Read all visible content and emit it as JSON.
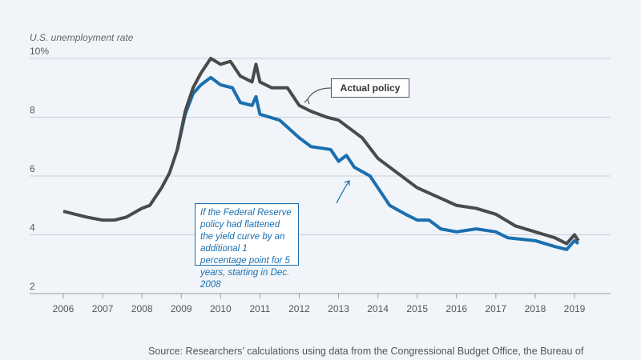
{
  "chart_data": {
    "type": "line",
    "title": "",
    "ylabel": "U.S. unemployment rate",
    "ylim": [
      2,
      10
    ],
    "xlim": [
      2006,
      2019
    ],
    "yticks": [
      "10%",
      "8",
      "6",
      "4",
      "2"
    ],
    "xticks": [
      "2006",
      "2007",
      "2008",
      "2009",
      "2010",
      "2011",
      "2012",
      "2013",
      "2014",
      "2015",
      "2016",
      "2017",
      "2018",
      "2019"
    ],
    "grid": true,
    "series": [
      {
        "name": "Actual policy",
        "color": "#4a4a4a",
        "points": [
          [
            2006.0,
            4.8
          ],
          [
            2006.3,
            4.7
          ],
          [
            2006.6,
            4.6
          ],
          [
            2007.0,
            4.5
          ],
          [
            2007.3,
            4.5
          ],
          [
            2007.6,
            4.6
          ],
          [
            2008.0,
            4.9
          ],
          [
            2008.2,
            5.0
          ],
          [
            2008.5,
            5.6
          ],
          [
            2008.7,
            6.1
          ],
          [
            2008.9,
            6.9
          ],
          [
            2009.1,
            8.2
          ],
          [
            2009.3,
            9.0
          ],
          [
            2009.5,
            9.5
          ],
          [
            2009.75,
            10.0
          ],
          [
            2010.0,
            9.8
          ],
          [
            2010.25,
            9.9
          ],
          [
            2010.5,
            9.4
          ],
          [
            2010.8,
            9.2
          ],
          [
            2010.9,
            9.8
          ],
          [
            2011.0,
            9.2
          ],
          [
            2011.3,
            9.0
          ],
          [
            2011.7,
            9.0
          ],
          [
            2012.0,
            8.4
          ],
          [
            2012.3,
            8.2
          ],
          [
            2012.7,
            8.0
          ],
          [
            2013.0,
            7.9
          ],
          [
            2013.3,
            7.6
          ],
          [
            2013.6,
            7.3
          ],
          [
            2014.0,
            6.6
          ],
          [
            2014.5,
            6.1
          ],
          [
            2015.0,
            5.6
          ],
          [
            2015.5,
            5.3
          ],
          [
            2016.0,
            5.0
          ],
          [
            2016.5,
            4.9
          ],
          [
            2017.0,
            4.7
          ],
          [
            2017.5,
            4.3
          ],
          [
            2018.0,
            4.1
          ],
          [
            2018.5,
            3.9
          ],
          [
            2018.8,
            3.7
          ],
          [
            2019.0,
            4.0
          ],
          [
            2019.1,
            3.8
          ]
        ]
      },
      {
        "name": "If the Federal Reserve policy had flattened the yield curve by an additional 1 percentage point for 5 years, starting in Dec. 2008",
        "color": "#1a6fb0",
        "points": [
          [
            2008.9,
            6.9
          ],
          [
            2009.1,
            8.1
          ],
          [
            2009.3,
            8.8
          ],
          [
            2009.5,
            9.1
          ],
          [
            2009.75,
            9.35
          ],
          [
            2010.0,
            9.1
          ],
          [
            2010.3,
            9.0
          ],
          [
            2010.5,
            8.5
          ],
          [
            2010.8,
            8.4
          ],
          [
            2010.9,
            8.7
          ],
          [
            2011.0,
            8.1
          ],
          [
            2011.5,
            7.9
          ],
          [
            2012.0,
            7.3
          ],
          [
            2012.3,
            7.0
          ],
          [
            2012.8,
            6.9
          ],
          [
            2013.0,
            6.5
          ],
          [
            2013.2,
            6.7
          ],
          [
            2013.4,
            6.3
          ],
          [
            2013.8,
            6.0
          ],
          [
            2014.0,
            5.6
          ],
          [
            2014.3,
            5.0
          ],
          [
            2014.7,
            4.7
          ],
          [
            2015.0,
            4.5
          ],
          [
            2015.3,
            4.5
          ],
          [
            2015.6,
            4.2
          ],
          [
            2016.0,
            4.1
          ],
          [
            2016.5,
            4.2
          ],
          [
            2017.0,
            4.1
          ],
          [
            2017.3,
            3.9
          ],
          [
            2018.0,
            3.8
          ],
          [
            2018.5,
            3.6
          ],
          [
            2018.8,
            3.5
          ],
          [
            2019.0,
            3.8
          ],
          [
            2019.1,
            3.7
          ]
        ]
      }
    ],
    "annotations": {
      "actual": "Actual policy",
      "counterfactual": "If the Federal Reserve policy had flattened the yield curve by an additional 1 percentage point for 5 years, starting in Dec. 2008"
    }
  },
  "source": "Source: Researchers’ calculations using data from the Congressional Budget Office, the Bureau of"
}
